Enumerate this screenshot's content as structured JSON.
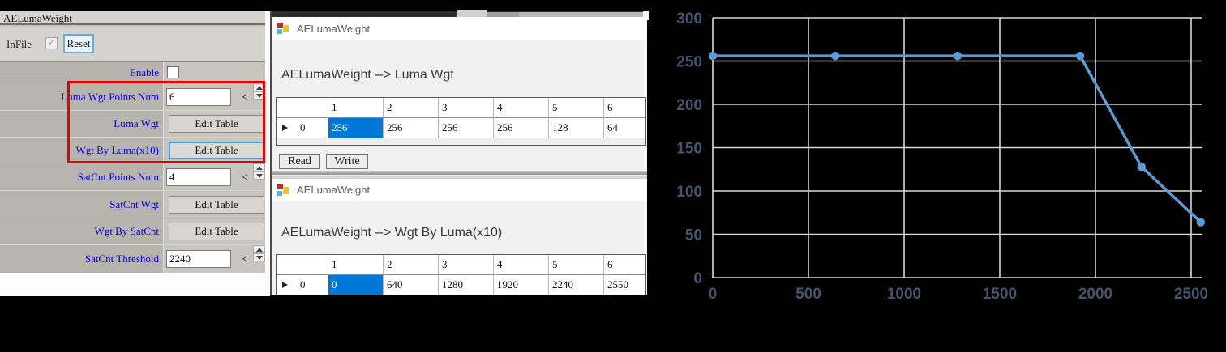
{
  "colors": {
    "selection": "#0078d7",
    "panel_label_blue": "#0d00dd",
    "highlight_red": "#e30000",
    "chart_line": "#5b9bd5",
    "chart_grid": "#d9d9d9",
    "chart_label": "#44546a"
  },
  "panel": {
    "title": "AELumaWeight",
    "infile_label": "InFile",
    "infile_checked": true,
    "check_glyph": "✓",
    "reset_button": "Reset",
    "rows": [
      {
        "label": "Enable",
        "type": "checkbox",
        "checked": false
      },
      {
        "label": "Luma Wgt Points Num",
        "type": "spinner",
        "value": "6",
        "back_glyph": "<"
      },
      {
        "label": "Luma Wgt",
        "type": "button",
        "button_label": "Edit Table"
      },
      {
        "label": "Wgt By Luma(x10)",
        "type": "button",
        "button_label": "Edit Table",
        "focused": true
      },
      {
        "label": "SatCnt Points Num",
        "type": "spinner",
        "value": "4",
        "back_glyph": "<"
      },
      {
        "label": "SatCnt Wgt",
        "type": "button",
        "button_label": "Edit Table"
      },
      {
        "label": "Wgt By SatCnt",
        "type": "button",
        "button_label": "Edit Table"
      },
      {
        "label": "SatCnt Threshold",
        "type": "spinner",
        "value": "2240",
        "back_glyph": "<"
      }
    ]
  },
  "dialog1": {
    "title": "AELumaWeight",
    "heading": "AELumaWeight --> Luma Wgt",
    "table": {
      "columns": [
        "1",
        "2",
        "3",
        "4",
        "5",
        "6"
      ],
      "row_header": "0",
      "values": [
        "256",
        "256",
        "256",
        "256",
        "128",
        "64"
      ],
      "selected_column": "1"
    },
    "read_button": "Read",
    "write_button": "Write"
  },
  "dialog2": {
    "title": "AELumaWeight",
    "heading": "AELumaWeight --> Wgt By Luma(x10)",
    "table": {
      "columns": [
        "1",
        "2",
        "3",
        "4",
        "5",
        "6"
      ],
      "row_header": "0",
      "values": [
        "0",
        "640",
        "1280",
        "1920",
        "2240",
        "2550"
      ],
      "selected_column": "1"
    }
  },
  "chart_data": {
    "type": "line",
    "title": "",
    "xlabel": "",
    "ylabel": "",
    "x": [
      0,
      640,
      1280,
      1920,
      2240,
      2550
    ],
    "y": [
      256,
      256,
      256,
      256,
      128,
      64
    ],
    "x_ticks": [
      "0",
      "500",
      "1000",
      "1500",
      "2000",
      "2500"
    ],
    "y_ticks": [
      "0",
      "50",
      "100",
      "150",
      "200",
      "250",
      "300"
    ],
    "xlim": [
      0,
      2560
    ],
    "ylim": [
      0,
      300
    ],
    "grid": true,
    "legend": false,
    "markers": true,
    "line_color": "#5b9bd5",
    "grid_color": "#d9d9d9",
    "label_color": "#44546a",
    "background": "#000000"
  }
}
